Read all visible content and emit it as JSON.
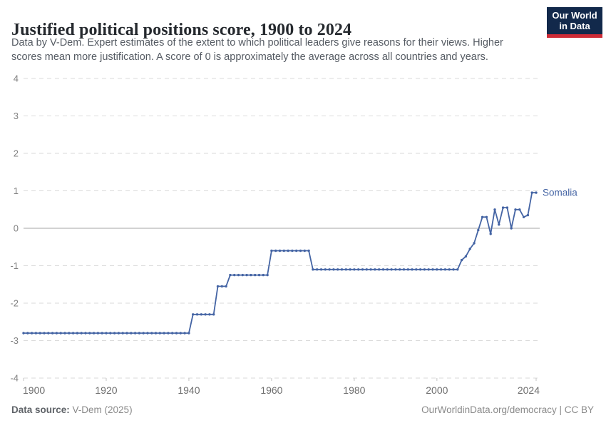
{
  "header": {
    "title": "Justified political positions score, 1900 to 2024",
    "subtitle_line1": "Data by V-Dem. Expert estimates of the extent to which political leaders give reasons for their views. Higher",
    "subtitle_line2": "scores mean more justification. A score of 0 is approximately the average across all countries and years."
  },
  "logo": {
    "line1": "Our World",
    "line2": "in Data",
    "bg_color": "#12294b",
    "accent_color": "#ce2b36"
  },
  "footer": {
    "source_label": "Data source:",
    "source_value": " V-Dem (2025)",
    "right_text": "OurWorldinData.org/democracy | CC BY"
  },
  "chart_data": {
    "type": "line",
    "title": "Justified political positions score, 1900 to 2024",
    "xlabel": "",
    "ylabel": "",
    "ylim": [
      -4,
      4
    ],
    "xlim": [
      1900,
      2024
    ],
    "grid": "dashed-horizontal",
    "y_ticks": [
      4,
      3,
      2,
      1,
      0,
      -1,
      -2,
      -3,
      -4
    ],
    "x_ticks": [
      1900,
      1920,
      1940,
      1960,
      1980,
      2000,
      2024
    ],
    "start_year": 1900,
    "end_year": 2024,
    "legend_position": "end-of-line-label",
    "series": [
      {
        "name": "Somalia",
        "color": "#4464a4",
        "values": [
          -2.8,
          -2.8,
          -2.8,
          -2.8,
          -2.8,
          -2.8,
          -2.8,
          -2.8,
          -2.8,
          -2.8,
          -2.8,
          -2.8,
          -2.8,
          -2.8,
          -2.8,
          -2.8,
          -2.8,
          -2.8,
          -2.8,
          -2.8,
          -2.8,
          -2.8,
          -2.8,
          -2.8,
          -2.8,
          -2.8,
          -2.8,
          -2.8,
          -2.8,
          -2.8,
          -2.8,
          -2.8,
          -2.8,
          -2.8,
          -2.8,
          -2.8,
          -2.8,
          -2.8,
          -2.8,
          -2.8,
          -2.8,
          -2.3,
          -2.3,
          -2.3,
          -2.3,
          -2.3,
          -2.3,
          -1.55,
          -1.55,
          -1.55,
          -1.25,
          -1.25,
          -1.25,
          -1.25,
          -1.25,
          -1.25,
          -1.25,
          -1.25,
          -1.25,
          -1.25,
          -0.6,
          -0.6,
          -0.6,
          -0.6,
          -0.6,
          -0.6,
          -0.6,
          -0.6,
          -0.6,
          -0.6,
          -1.1,
          -1.1,
          -1.1,
          -1.1,
          -1.1,
          -1.1,
          -1.1,
          -1.1,
          -1.1,
          -1.1,
          -1.1,
          -1.1,
          -1.1,
          -1.1,
          -1.1,
          -1.1,
          -1.1,
          -1.1,
          -1.1,
          -1.1,
          -1.1,
          -1.1,
          -1.1,
          -1.1,
          -1.1,
          -1.1,
          -1.1,
          -1.1,
          -1.1,
          -1.1,
          -1.1,
          -1.1,
          -1.1,
          -1.1,
          -1.1,
          -1.1,
          -0.85,
          -0.75,
          -0.55,
          -0.4,
          -0.05,
          0.3,
          0.3,
          -0.15,
          0.5,
          0.1,
          0.55,
          0.55,
          0.0,
          0.5,
          0.5,
          0.3,
          0.35,
          0.95,
          0.95
        ]
      }
    ]
  }
}
